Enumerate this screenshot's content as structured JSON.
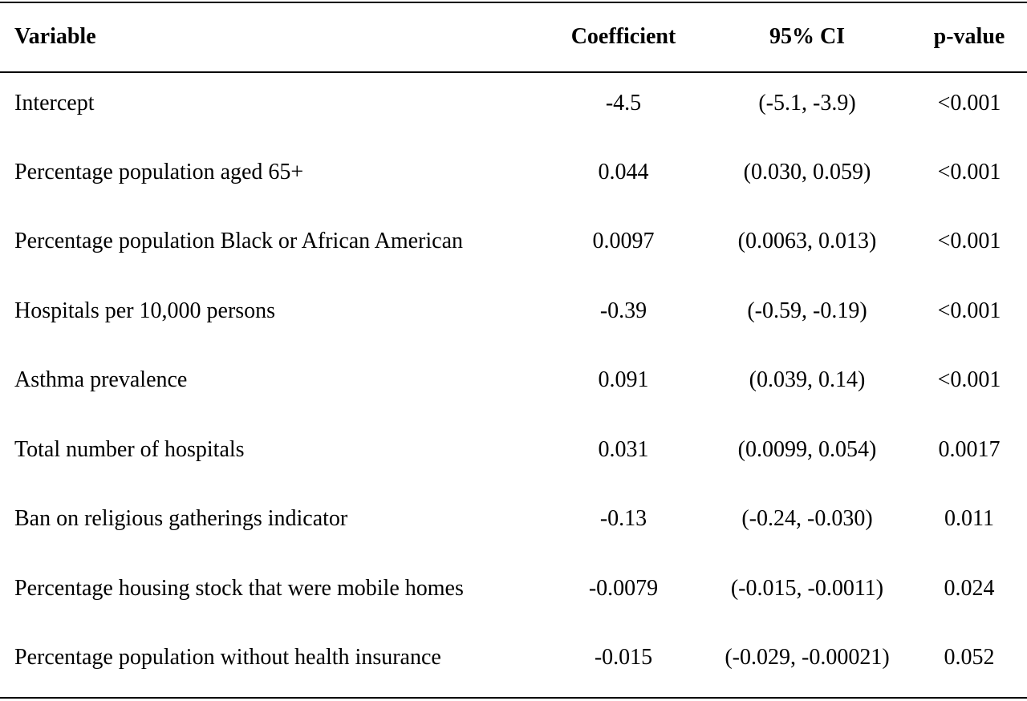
{
  "table": {
    "headers": {
      "variable": "Variable",
      "coefficient": "Coefficient",
      "ci": "95% CI",
      "pvalue": "p-value"
    },
    "rows": [
      {
        "variable": "Intercept",
        "coefficient": "-4.5",
        "ci": "(-5.1, -3.9)",
        "pvalue": "<0.001"
      },
      {
        "variable": "Percentage population aged 65+",
        "coefficient": "0.044",
        "ci": "(0.030, 0.059)",
        "pvalue": "<0.001"
      },
      {
        "variable": "Percentage population Black or African American",
        "coefficient": "0.0097",
        "ci": "(0.0063, 0.013)",
        "pvalue": "<0.001"
      },
      {
        "variable": "Hospitals per 10,000 persons",
        "coefficient": "-0.39",
        "ci": "(-0.59, -0.19)",
        "pvalue": "<0.001"
      },
      {
        "variable": "Asthma prevalence",
        "coefficient": "0.091",
        "ci": "(0.039, 0.14)",
        "pvalue": "<0.001"
      },
      {
        "variable": "Total number of hospitals",
        "coefficient": "0.031",
        "ci": "(0.0099, 0.054)",
        "pvalue": "0.0017"
      },
      {
        "variable": "Ban on religious gatherings indicator",
        "coefficient": "-0.13",
        "ci": "(-0.24, -0.030)",
        "pvalue": "0.011"
      },
      {
        "variable": "Percentage housing stock that were mobile homes",
        "coefficient": "-0.0079",
        "ci": "(-0.015, -0.0011)",
        "pvalue": "0.024"
      },
      {
        "variable": "Percentage population without health insurance",
        "coefficient": "-0.015",
        "ci": "(-0.029, -0.00021)",
        "pvalue": "0.052"
      }
    ]
  }
}
